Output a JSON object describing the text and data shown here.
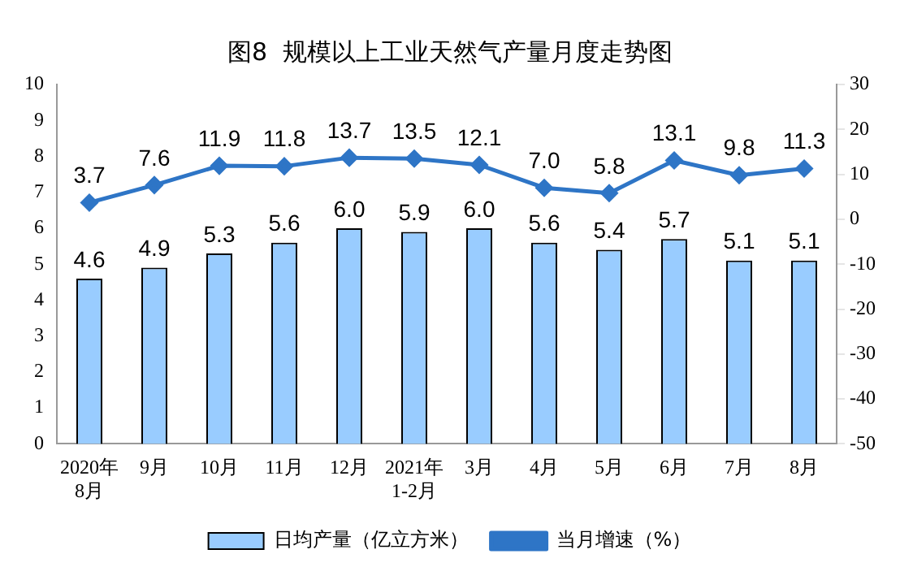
{
  "chart_data": {
    "type": "bar",
    "title": "图8  规模以上工业天然气产量月度走势图",
    "categories": [
      "2020年\n8月",
      "9月",
      "10月",
      "11月",
      "12月",
      "2021年\n1-2月",
      "3月",
      "4月",
      "5月",
      "6月",
      "7月",
      "8月"
    ],
    "series": [
      {
        "name": "日均产量（亿立方米）",
        "color": "#99ccff",
        "values": [
          4.6,
          4.9,
          5.3,
          5.6,
          6.0,
          5.9,
          6.0,
          5.6,
          5.4,
          5.7,
          5.1,
          5.1
        ],
        "value_labels": [
          "4.6",
          "4.9",
          "5.3",
          "5.6",
          "6.0",
          "5.9",
          "6.0",
          "5.6",
          "5.4",
          "5.7",
          "5.1",
          "5.1"
        ]
      },
      {
        "name": "当月增速（%）",
        "type": "line",
        "axis": "y2",
        "color": "#2e75c6",
        "values": [
          3.7,
          7.6,
          11.9,
          11.8,
          13.7,
          13.5,
          12.1,
          7.0,
          5.8,
          13.1,
          9.8,
          11.3
        ],
        "value_labels": [
          "3.7",
          "7.6",
          "11.9",
          "11.8",
          "13.7",
          "13.5",
          "12.1",
          "7.0",
          "5.8",
          "13.1",
          "9.8",
          "11.3"
        ]
      }
    ],
    "ylim": [
      0,
      10
    ],
    "yticks": [
      0,
      1,
      2,
      3,
      4,
      5,
      6,
      7,
      8,
      9,
      10
    ],
    "y2lim": [
      -50,
      30
    ],
    "y2ticks": [
      -50,
      -40,
      -30,
      -20,
      -10,
      0,
      10,
      20,
      30
    ],
    "grid": false,
    "legend": "bottom",
    "marker": "diamond"
  }
}
